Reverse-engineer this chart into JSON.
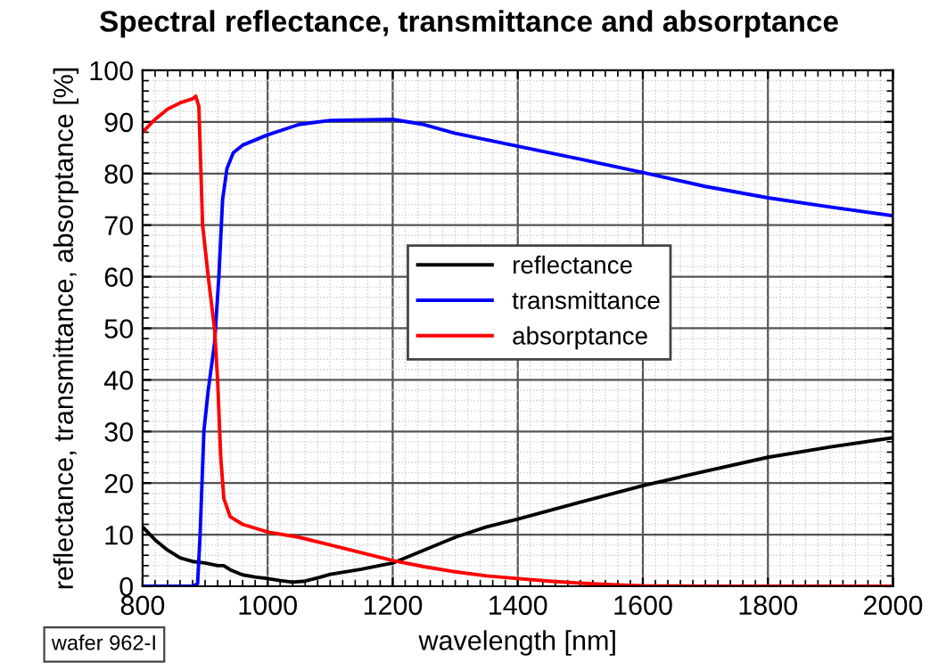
{
  "chart_data": {
    "type": "line",
    "title": "Spectral reflectance, transmittance and absorptance",
    "xlabel": "wavelength [nm]",
    "ylabel": "reflectance, transmittance, absorptance [%]",
    "annotations": [
      "wafer 962-I"
    ],
    "xlim": [
      800,
      2000
    ],
    "xticks": [
      800,
      1000,
      1200,
      1400,
      1600,
      1800,
      2000
    ],
    "ylim": [
      0,
      100
    ],
    "yticks": [
      0,
      10,
      20,
      30,
      40,
      50,
      60,
      70,
      80,
      90,
      100
    ],
    "grid": true,
    "legend": "right",
    "marker": "none",
    "line_style": "solid",
    "series": [
      {
        "name": "reflectance",
        "color": "#000000",
        "x": [
          800,
          820,
          840,
          860,
          880,
          900,
          920,
          930,
          940,
          960,
          980,
          1000,
          1020,
          1040,
          1060,
          1080,
          1100,
          1150,
          1200,
          1250,
          1300,
          1350,
          1400,
          1500,
          1600,
          1700,
          1800,
          1900,
          2000
        ],
        "values": [
          11.5,
          9,
          7,
          5.5,
          4.8,
          4.5,
          4,
          4,
          3.2,
          2.2,
          1.8,
          1.5,
          1.1,
          0.8,
          1,
          1.6,
          2.3,
          3.3,
          4.5,
          7,
          9.5,
          11.5,
          13,
          16.3,
          19.5,
          22.3,
          25,
          27,
          28.8
        ]
      },
      {
        "name": "transmittance",
        "color": "#0000ff",
        "x": [
          800,
          880,
          888,
          892,
          898,
          905,
          915,
          922,
          928,
          935,
          945,
          960,
          1000,
          1050,
          1100,
          1200,
          1250,
          1300,
          1400,
          1500,
          1600,
          1700,
          1800,
          1900,
          2000
        ],
        "values": [
          0,
          0,
          0.5,
          10,
          30,
          38,
          47,
          60,
          75,
          81,
          84,
          85.5,
          87.5,
          89.5,
          90.3,
          90.5,
          89.5,
          87.8,
          85.3,
          82.8,
          80.2,
          77.5,
          75.3,
          73.5,
          71.8
        ]
      },
      {
        "name": "absorptance",
        "color": "#ff0000",
        "x": [
          800,
          820,
          840,
          860,
          880,
          885,
          890,
          896,
          905,
          915,
          920,
          925,
          930,
          940,
          960,
          1000,
          1050,
          1100,
          1150,
          1200,
          1250,
          1300,
          1350,
          1400,
          1450,
          1500,
          1550,
          1600,
          1700,
          1800,
          2000
        ],
        "values": [
          88,
          90.5,
          92.5,
          93.7,
          94.5,
          95,
          93,
          70,
          60,
          50,
          40,
          25,
          17,
          13.5,
          12,
          10.5,
          9.5,
          8,
          6.5,
          5,
          3.8,
          2.8,
          2,
          1.5,
          1,
          0.6,
          0.3,
          0.1,
          0,
          0,
          0
        ]
      }
    ]
  }
}
